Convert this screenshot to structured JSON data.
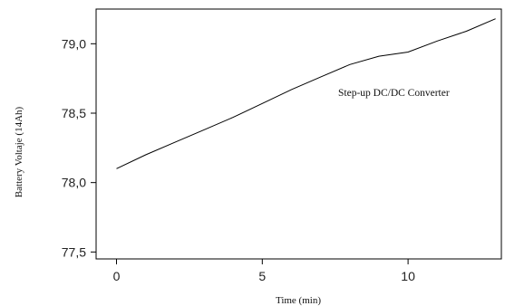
{
  "chart_data": {
    "type": "line",
    "xlabel": "Time (min)",
    "ylabel": "Battery Voltaje (14Ah)",
    "annotation": "Step-up DC/DC Converter",
    "xlim": [
      -0.7,
      13.2
    ],
    "ylim": [
      77.45,
      79.25
    ],
    "x_ticks": [
      0,
      5,
      10
    ],
    "x_tick_labels": [
      "0",
      "5",
      "10"
    ],
    "y_ticks": [
      77.5,
      78.0,
      78.5,
      79.0
    ],
    "y_tick_labels": [
      "77,5",
      "78,0",
      "78,5",
      "79,0"
    ],
    "grid": false,
    "series": [
      {
        "color": "#000000",
        "x": [
          0,
          1,
          2,
          3,
          4,
          5,
          6,
          7,
          8,
          9,
          10,
          11,
          12,
          13
        ],
        "y": [
          78.1,
          78.2,
          78.29,
          78.38,
          78.47,
          78.57,
          78.67,
          78.76,
          78.85,
          78.91,
          78.94,
          79.02,
          79.09,
          79.18
        ]
      }
    ]
  }
}
